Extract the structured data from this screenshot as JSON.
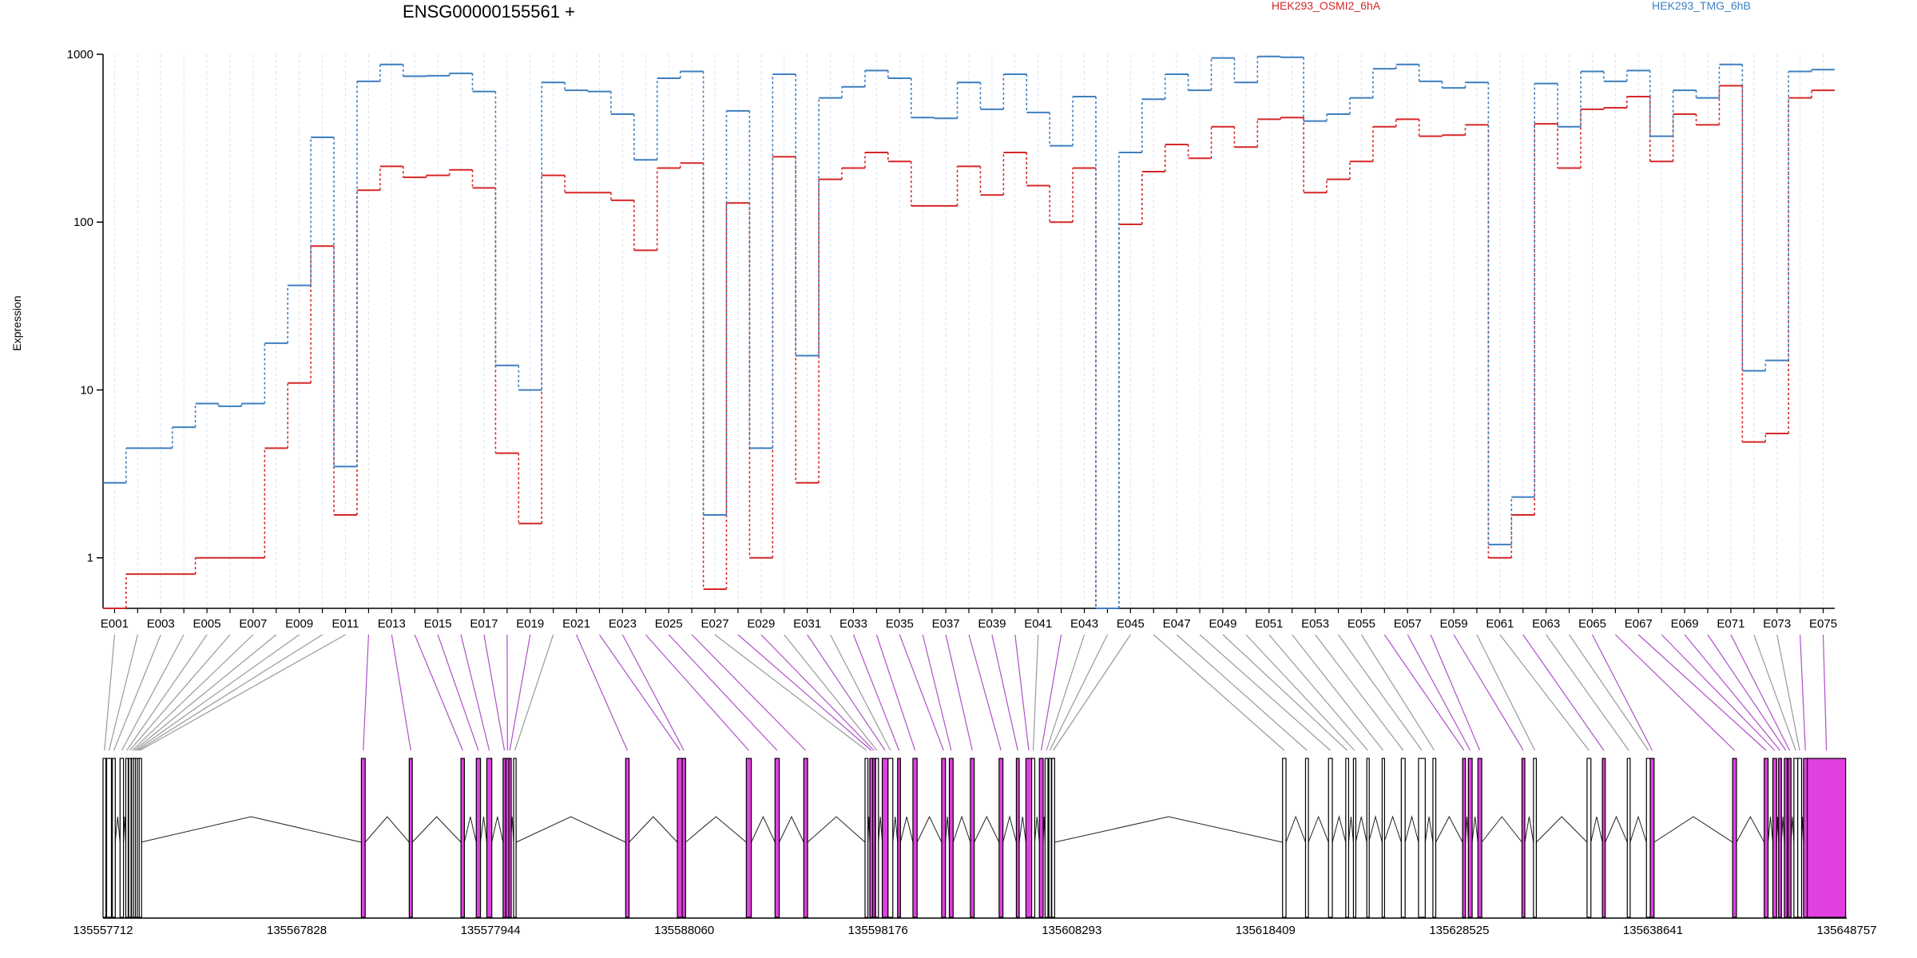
{
  "chart_data": {
    "type": "line",
    "title": "ENSG00000155561 +",
    "ylabel": "Expression",
    "y_scale": "log",
    "ylim": [
      0.5,
      1000
    ],
    "y_ticks": [
      1,
      10,
      100,
      1000
    ],
    "y_tick_labels": [
      "1",
      "10",
      "100",
      "1000"
    ],
    "grid": "vertical, light blue, one per exon",
    "categories": [
      "E001",
      "E002",
      "E003",
      "E004",
      "E005",
      "E006",
      "E007",
      "E008",
      "E009",
      "E010",
      "E011",
      "E012",
      "E013",
      "E014",
      "E015",
      "E016",
      "E017",
      "E018",
      "E019",
      "E020",
      "E021",
      "E022",
      "E023",
      "E024",
      "E025",
      "E026",
      "E027",
      "E028",
      "E029",
      "E030",
      "E031",
      "E032",
      "E033",
      "E034",
      "E035",
      "E036",
      "E037",
      "E038",
      "E039",
      "E040",
      "E041",
      "E042",
      "E043",
      "E044",
      "E045",
      "E046",
      "E047",
      "E048",
      "E049",
      "E050",
      "E051",
      "E052",
      "E053",
      "E054",
      "E055",
      "E056",
      "E057",
      "E058",
      "E059",
      "E060",
      "E061",
      "E062",
      "E063",
      "E064",
      "E065",
      "E066",
      "E067",
      "E068",
      "E069",
      "E070",
      "E071",
      "E072",
      "E073",
      "E074",
      "E075"
    ],
    "x_tick_labels": [
      "E001",
      "E003",
      "E005",
      "E007",
      "E009",
      "E011",
      "E013",
      "E015",
      "E017",
      "E019",
      "E021",
      "E023",
      "E025",
      "E027",
      "E029",
      "E031",
      "E033",
      "E035",
      "E037",
      "E039",
      "E041",
      "E043",
      "E045",
      "E047",
      "E049",
      "E051",
      "E053",
      "E055",
      "E057",
      "E059",
      "E061",
      "E063",
      "E065",
      "E067",
      "E069",
      "E071",
      "E073",
      "E075"
    ],
    "series": [
      {
        "name": "HEK293_OSMI2_6hA",
        "color": "#d62728",
        "values": [
          0.5,
          0.8,
          0.8,
          0.8,
          1.0,
          1.0,
          1.0,
          4.5,
          11,
          72,
          1.8,
          155,
          215,
          185,
          190,
          205,
          160,
          4.2,
          1.6,
          190,
          150,
          150,
          135,
          68,
          210,
          225,
          0.65,
          130,
          1.0,
          245,
          2.8,
          180,
          210,
          260,
          230,
          125,
          125,
          215,
          145,
          260,
          165,
          100,
          210,
          0.5,
          97,
          200,
          290,
          240,
          370,
          280,
          410,
          420,
          150,
          180,
          230,
          370,
          410,
          325,
          330,
          380,
          1.0,
          1.8,
          385,
          210,
          470,
          480,
          560,
          230,
          440,
          380,
          650,
          4.9,
          5.5,
          550,
          610
        ]
      },
      {
        "name": "HEK293_TMG_6hB",
        "color": "#3f7fbf",
        "values": [
          2.8,
          4.5,
          4.5,
          6.0,
          8.3,
          8.0,
          8.3,
          19,
          42,
          320,
          3.5,
          690,
          870,
          740,
          745,
          770,
          600,
          14,
          10,
          680,
          610,
          600,
          440,
          235,
          720,
          790,
          1.8,
          460,
          4.5,
          760,
          16,
          550,
          640,
          800,
          720,
          420,
          415,
          680,
          470,
          760,
          450,
          285,
          560,
          0.5,
          260,
          540,
          760,
          610,
          950,
          680,
          970,
          960,
          400,
          440,
          550,
          820,
          870,
          690,
          630,
          680,
          1.2,
          2.3,
          670,
          370,
          790,
          690,
          800,
          325,
          610,
          550,
          870,
          13,
          15,
          790,
          810
        ]
      }
    ],
    "gene_track": {
      "coordinate_labels": [
        "135557712",
        "135567828",
        "135577944",
        "135588060",
        "135598176",
        "135608293",
        "135618409",
        "135628525",
        "135638641",
        "135648757"
      ],
      "coord_min": 135557712,
      "coord_max": 135648757,
      "exon_colors": {
        "significant": "#e040e0",
        "normal": "#ffffff"
      },
      "connector_colors": {
        "significant": "#b050c8",
        "normal": "#999999"
      },
      "exon_starts": [
        135557712,
        135557900,
        135558200,
        135558600,
        135558900,
        135559050,
        135559200,
        135559300,
        135559400,
        135559500,
        135559600,
        135571200,
        135573700,
        135576400,
        135577200,
        135577750,
        135578600,
        135578750,
        135578900,
        135579150,
        135585000,
        135587700,
        135587950,
        135591300,
        135592800,
        135594300,
        135597500,
        135597750,
        135597900,
        135598050,
        135598400,
        135598700,
        135599200,
        135600000,
        135601500,
        135601900,
        135603000,
        135604500,
        135605400,
        135605900,
        135606200,
        135606600,
        135606900,
        135607100,
        135607250,
        135619300,
        135620500,
        135621700,
        135622600,
        135623000,
        135623700,
        135624500,
        135625500,
        135626400,
        135627150,
        135628700,
        135629000,
        135629500,
        135631800,
        135632400,
        135635200,
        135636000,
        135637300,
        135638300,
        135638500,
        135642800,
        135644450,
        135644900,
        135645200,
        135645500,
        135645700,
        135646000,
        135646200,
        135646500,
        135646700
      ],
      "exon_widths": [
        150,
        250,
        150,
        180,
        100,
        100,
        80,
        80,
        80,
        80,
        80,
        200,
        160,
        180,
        220,
        260,
        140,
        160,
        100,
        130,
        180,
        280,
        180,
        260,
        220,
        200,
        150,
        150,
        130,
        150,
        300,
        250,
        150,
        220,
        200,
        200,
        200,
        200,
        150,
        300,
        160,
        200,
        150,
        100,
        150,
        180,
        150,
        200,
        150,
        120,
        100,
        100,
        200,
        350,
        150,
        150,
        200,
        200,
        150,
        150,
        200,
        150,
        150,
        200,
        200,
        200,
        200,
        200,
        150,
        150,
        150,
        200,
        200,
        200,
        2000
      ],
      "exon_significant": [
        false,
        false,
        false,
        false,
        false,
        false,
        false,
        false,
        false,
        false,
        false,
        true,
        true,
        true,
        true,
        true,
        true,
        true,
        true,
        false,
        true,
        true,
        true,
        true,
        true,
        true,
        false,
        true,
        true,
        false,
        true,
        false,
        true,
        true,
        true,
        true,
        true,
        true,
        true,
        true,
        false,
        true,
        false,
        false,
        false,
        false,
        false,
        false,
        false,
        false,
        false,
        false,
        false,
        false,
        false,
        true,
        true,
        true,
        true,
        false,
        false,
        true,
        false,
        false,
        true,
        true,
        true,
        true,
        true,
        true,
        true,
        false,
        false,
        true,
        true
      ]
    }
  }
}
